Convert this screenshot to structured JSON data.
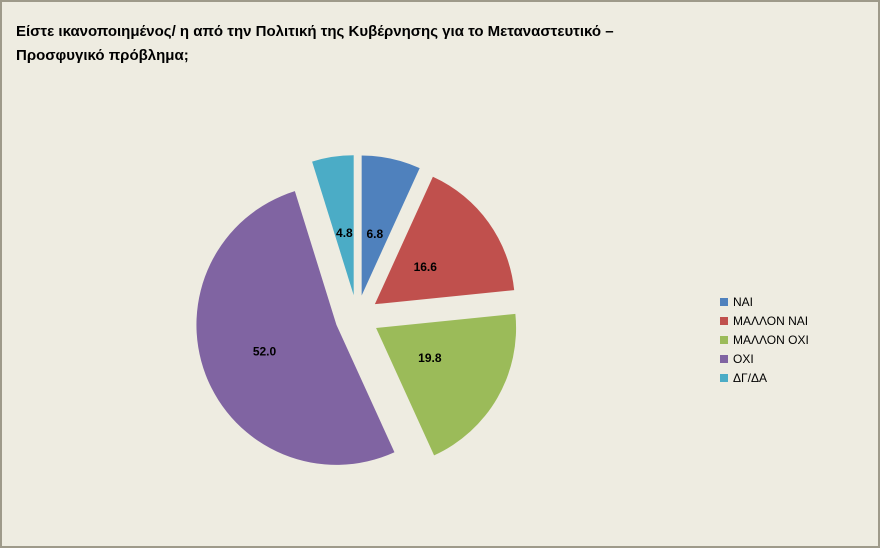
{
  "chart_data": {
    "type": "pie",
    "title": "Είστε ικανοποιημένος/ η από την Πολιτική της Κυβέρνησης για το Μεταναστευτικό – Προσφυγικό  πρόβλημα;",
    "categories": [
      "ΝΑΙ",
      "ΜΑΛΛΟΝ ΝΑΙ",
      "ΜΑΛΛΟΝ ΟΧΙ",
      "ΟΧΙ",
      "ΔΓ/ΔΑ"
    ],
    "values": [
      6.8,
      16.6,
      19.8,
      52.0,
      4.8
    ],
    "value_labels": [
      "6.8",
      "16.6",
      "19.8",
      "52.0",
      "4.8"
    ],
    "colors": [
      "#4f81bd",
      "#c0504d",
      "#9bbb59",
      "#8064a2",
      "#4bacc6"
    ],
    "legend": "right"
  }
}
